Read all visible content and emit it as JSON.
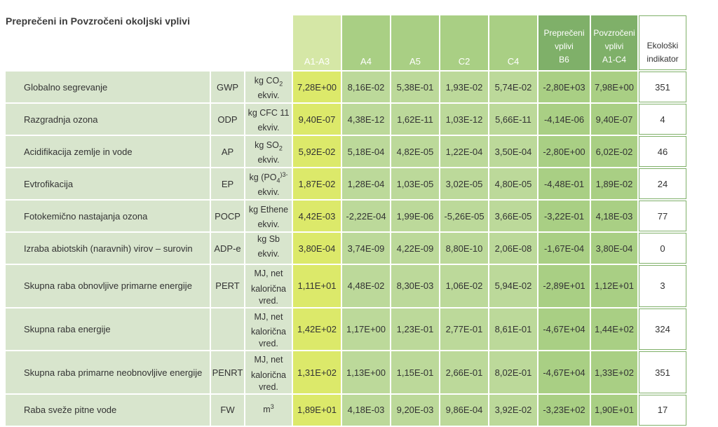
{
  "title": "Preprečeni in Povzročeni okoljski vplivi",
  "headers": {
    "a1a3": "A1-A3",
    "a4": "A4",
    "a5": "A5",
    "c2": "C2",
    "c4": "C4",
    "b6": [
      "Preprečeni",
      "vplivi",
      "B6"
    ],
    "a1c4": [
      "Povzročeni",
      "vplivi",
      "A1-C4"
    ],
    "ind": [
      "Ekološki",
      "indikator"
    ]
  },
  "rows": [
    {
      "name": "Globalno segrevanje",
      "abbr": "GWP",
      "unit": [
        "kg CO",
        "2",
        "",
        "ekviv."
      ],
      "a1a3": "7,28E+00",
      "a4": "8,16E-02",
      "a5": "5,38E-01",
      "c2": "1,93E-02",
      "c4": "5,74E-02",
      "b6": "-2,80E+03",
      "a1c4": "7,98E+00",
      "ind": "351"
    },
    {
      "name": "Razgradnja ozona",
      "abbr": "ODP",
      "unit": [
        "kg CFC 11",
        "",
        "",
        "ekviv."
      ],
      "a1a3": "9,40E-07",
      "a4": "4,38E-12",
      "a5": "1,62E-11",
      "c2": "1,03E-12",
      "c4": "5,66E-11",
      "b6": "-4,14E-06",
      "a1c4": "9,40E-07",
      "ind": "4"
    },
    {
      "name": "Acidifikacija zemlje in vode",
      "abbr": "AP",
      "unit": [
        "kg SO",
        "2",
        "",
        "ekviv."
      ],
      "a1a3": "5,92E-02",
      "a4": "5,18E-04",
      "a5": "4,82E-05",
      "c2": "1,22E-04",
      "c4": "3,50E-04",
      "b6": "-2,80E+00",
      "a1c4": "6,02E-02",
      "ind": "46"
    },
    {
      "name": "Evtrofikacija",
      "abbr": "EP",
      "unit": [
        "kg (PO",
        "4",
        ")3-",
        "ekviv."
      ],
      "a1a3": "1,87E-02",
      "a4": "1,28E-04",
      "a5": "1,03E-05",
      "c2": "3,02E-05",
      "c4": "4,80E-05",
      "b6": "-4,48E-01",
      "a1c4": "1,89E-02",
      "ind": "24"
    },
    {
      "name": "Fotokemično nastajanja ozona",
      "abbr": "POCP",
      "unit": [
        "kg Ethene",
        "",
        "",
        "ekviv."
      ],
      "a1a3": "4,42E-03",
      "a4": "-2,22E-04",
      "a5": "1,99E-06",
      "c2": "-5,26E-05",
      "c4": "3,66E-05",
      "b6": "-3,22E-01",
      "a1c4": "4,18E-03",
      "ind": "77"
    },
    {
      "name": "Izraba abiotskih (naravnih) virov – surovin",
      "abbr": "ADP-e",
      "unit": [
        "kg Sb ekviv.",
        "",
        "",
        ""
      ],
      "a1a3": "3,80E-04",
      "a4": "3,74E-09",
      "a5": "4,22E-09",
      "c2": "8,80E-10",
      "c4": "2,06E-08",
      "b6": "-1,67E-04",
      "a1c4": "3,80E-04",
      "ind": "0"
    },
    {
      "name": "Skupna raba obnovljive primarne energije",
      "abbr": "PERT",
      "unit": [
        "MJ, net",
        "",
        "",
        "kalorična vred."
      ],
      "a1a3": "1,11E+01",
      "a4": "4,48E-02",
      "a5": "8,30E-03",
      "c2": "1,06E-02",
      "c4": "5,94E-02",
      "b6": "-2,89E+01",
      "a1c4": "1,12E+01",
      "ind": "3"
    },
    {
      "name": "Skupna raba energije",
      "abbr": "",
      "unit": [
        "MJ, net",
        "",
        "",
        "kalorična vred."
      ],
      "a1a3": "1,42E+02",
      "a4": "1,17E+00",
      "a5": "1,23E-01",
      "c2": "2,77E-01",
      "c4": "8,61E-01",
      "b6": "-4,67E+04",
      "a1c4": "1,44E+02",
      "ind": "324"
    },
    {
      "name": "Skupna raba primarne neobnovljive energije",
      "abbr": "PENRT",
      "unit": [
        "MJ, net",
        "",
        "",
        "kalorična vred."
      ],
      "a1a3": "1,31E+02",
      "a4": "1,13E+00",
      "a5": "1,15E-01",
      "c2": "2,66E-01",
      "c4": "8,02E-01",
      "b6": "-4,67E+04",
      "a1c4": "1,33E+02",
      "ind": "351"
    },
    {
      "name": "Raba sveže pitne vode",
      "abbr": "FW",
      "unit": [
        "m",
        "",
        "3",
        ""
      ],
      "a1a3": "1,89E+01",
      "a4": "4,18E-03",
      "a5": "9,20E-03",
      "c2": "9,86E-04",
      "c4": "3,92E-02",
      "b6": "-3,23E+02",
      "a1c4": "1,90E+01",
      "ind": "17"
    }
  ]
}
